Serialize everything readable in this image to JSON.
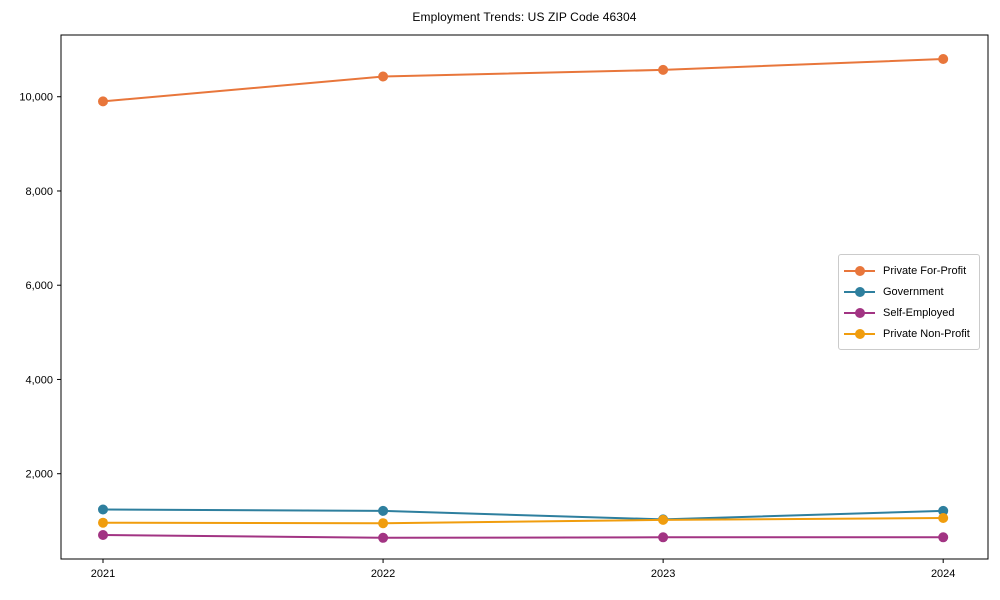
{
  "chart_data": {
    "type": "line",
    "title": "Employment Trends: US ZIP Code 46304",
    "xlabel": "",
    "ylabel": "",
    "x": [
      2021,
      2022,
      2023,
      2024
    ],
    "x_tick_labels": [
      "2021",
      "2022",
      "2023",
      "2024"
    ],
    "series": [
      {
        "name": "Private For-Profit",
        "color": "#e8763b",
        "values": [
          9900,
          10430,
          10570,
          10800
        ]
      },
      {
        "name": "Government",
        "color": "#2e7f9e",
        "values": [
          1240,
          1210,
          1030,
          1210
        ]
      },
      {
        "name": "Self-Employed",
        "color": "#a23483",
        "values": [
          700,
          640,
          650,
          650
        ]
      },
      {
        "name": "Private Non-Profit",
        "color": "#f09d0e",
        "values": [
          960,
          950,
          1020,
          1060
        ]
      }
    ],
    "yticks": [
      2000,
      4000,
      6000,
      8000,
      10000
    ],
    "ytick_labels": [
      "2,000",
      "4,000",
      "6,000",
      "8,000",
      "10,000"
    ],
    "ylim": [
      190,
      11310
    ],
    "xlim": [
      2020.85,
      2024.16
    ],
    "grid": false,
    "legend_position": "center right",
    "marker": "circle",
    "line_width": 2,
    "marker_radius": 5,
    "background_color": "#ffffff",
    "axis_color": "#000000",
    "legend_border_color": "#cbcbcb"
  }
}
